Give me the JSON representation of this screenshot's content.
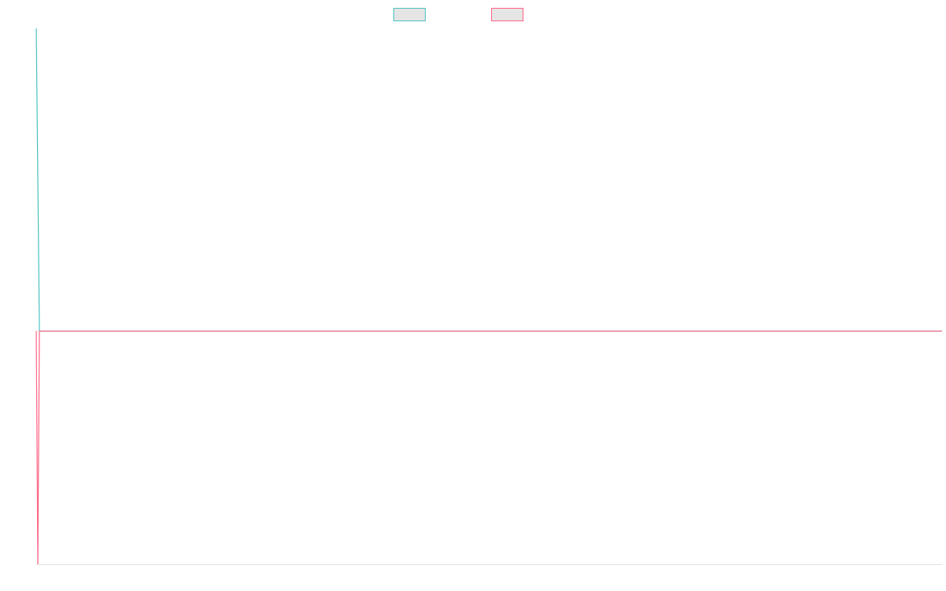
{
  "chart_data": {
    "type": "line",
    "legend": "top",
    "grid": false,
    "xlim": [
      0,
      575
    ],
    "ylim": [
      -0.77,
      1
    ],
    "series": [
      {
        "color": "#4bc0c0",
        "x": [
          0,
          2,
          575
        ],
        "values": [
          1,
          0,
          0
        ]
      },
      {
        "color": "#ff6384",
        "x": [
          0,
          1,
          2,
          575
        ],
        "values": [
          0,
          -0.77,
          0,
          0
        ]
      }
    ]
  }
}
